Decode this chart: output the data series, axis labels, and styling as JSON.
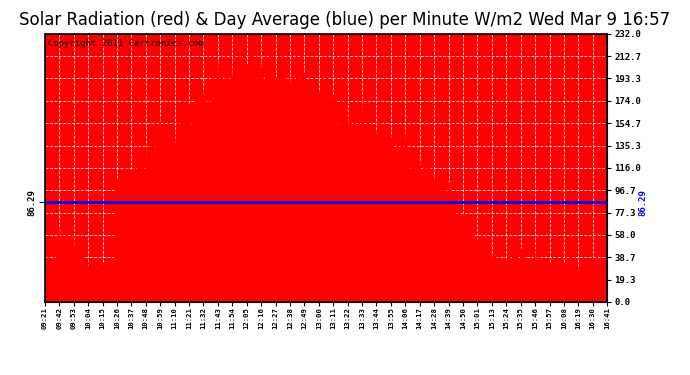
{
  "title": "Solar Radiation (red) & Day Average (blue) per Minute W/m2 Wed Mar 9 16:57",
  "copyright": "Copyright 2011 Cartronics.com",
  "yticks": [
    0.0,
    19.3,
    38.7,
    58.0,
    77.3,
    96.7,
    116.0,
    135.3,
    154.7,
    174.0,
    193.3,
    212.7,
    232.0
  ],
  "ymax": 232.0,
  "ymin": 0.0,
  "day_average": 86.29,
  "bar_color": "#FF0000",
  "line_color": "#0000FF",
  "plot_bg_color": "#FF0000",
  "title_fontsize": 12,
  "copyright_fontsize": 6.5,
  "x_tick_labels": [
    "09:21",
    "09:42",
    "09:53",
    "10:04",
    "10:15",
    "10:26",
    "10:37",
    "10:48",
    "10:59",
    "11:10",
    "11:21",
    "11:32",
    "11:43",
    "11:54",
    "12:05",
    "12:16",
    "12:27",
    "12:38",
    "12:49",
    "13:00",
    "13:11",
    "13:22",
    "13:33",
    "13:44",
    "13:55",
    "14:06",
    "14:17",
    "14:28",
    "14:39",
    "14:50",
    "15:01",
    "15:13",
    "15:24",
    "15:35",
    "15:46",
    "15:57",
    "16:08",
    "16:19",
    "16:30",
    "16:41"
  ]
}
